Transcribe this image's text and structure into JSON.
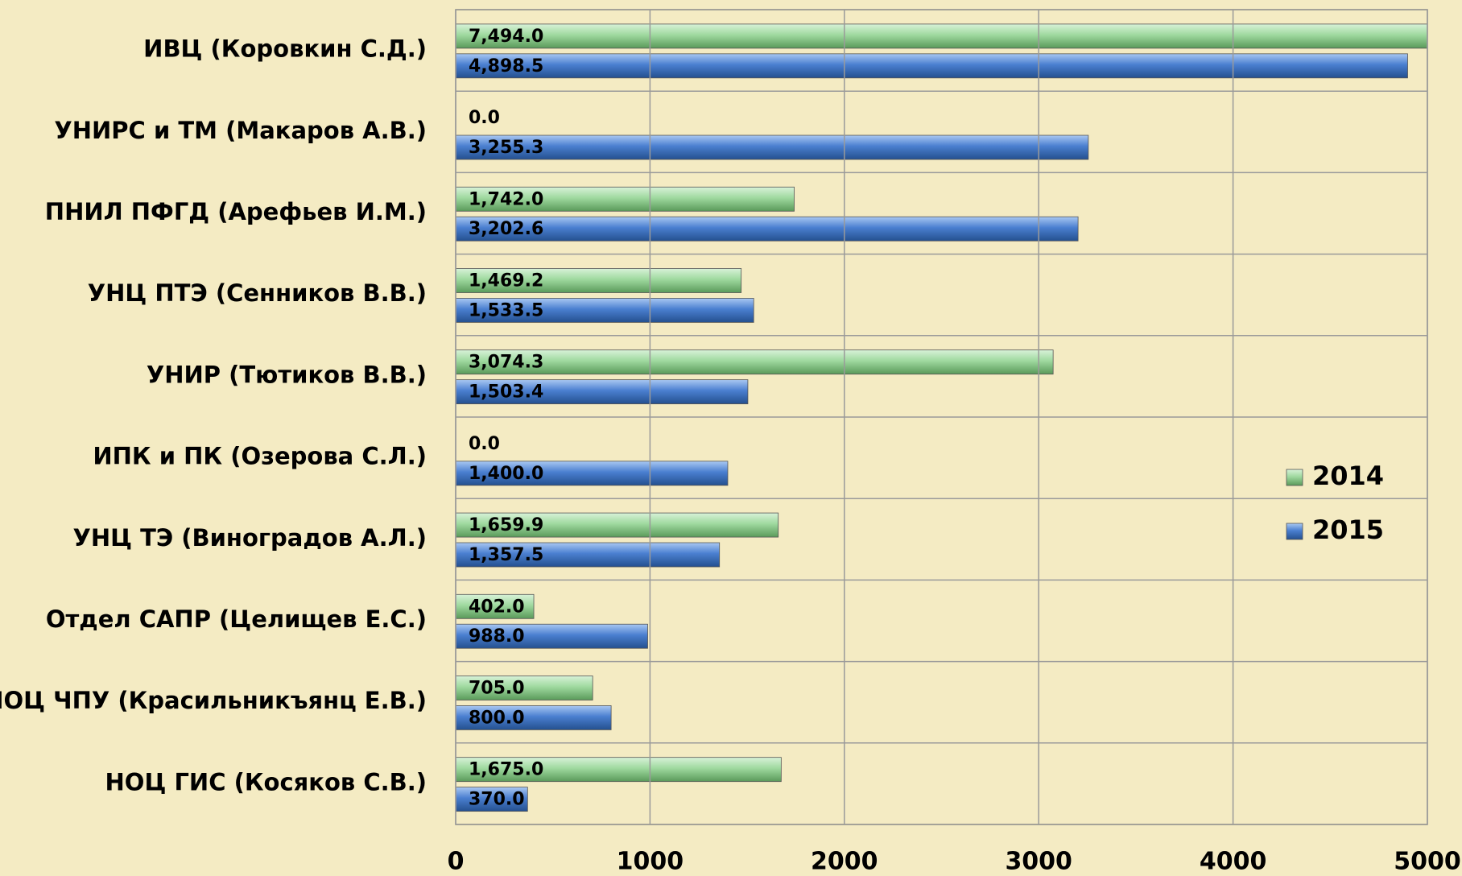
{
  "chart_data": {
    "type": "bar",
    "orientation": "horizontal",
    "categories": [
      "ИВЦ (Коровкин С.Д.)",
      "УНИРС и ТМ (Макаров А.В.)",
      "ПНИЛ ПФГД (Арефьев И.М.)",
      "УНЦ ПТЭ (Сенников В.В.)",
      "УНИР (Тютиков В.В.)",
      "ИПК и ПК (Озерова С.Л.)",
      "УНЦ ТЭ  (Виноградов А.Л.)",
      "Отдел САПР (Целищев Е.С.)",
      "НОЦ ЧПУ (Красильникъянц Е.В.)",
      "НОЦ ГИС  (Косяков С.В.)"
    ],
    "series": [
      {
        "name": "2014",
        "color": "#8fd08f",
        "values": [
          7494.0,
          0.0,
          1742.0,
          1469.2,
          3074.3,
          0.0,
          1659.9,
          402.0,
          705.0,
          1675.0
        ],
        "value_labels": [
          "7,494.0",
          "0.0",
          "1,742.0",
          "1,469.2",
          "3,074.3",
          "0.0",
          "1,659.9",
          "402.0",
          "705.0",
          "1,675.0"
        ]
      },
      {
        "name": "2015",
        "color": "#4a7fd0",
        "values": [
          4898.5,
          3255.3,
          3202.6,
          1533.5,
          1503.4,
          1400.0,
          1357.5,
          988.0,
          800.0,
          370.0
        ],
        "value_labels": [
          "4,898.5",
          "3,255.3",
          "3,202.6",
          "1,533.5",
          "1,503.4",
          "1,400.0",
          "1,357.5",
          "988.0",
          "800.0",
          "370.0"
        ]
      }
    ],
    "xlim": [
      0,
      5000
    ],
    "xticks": [
      0,
      1000,
      2000,
      3000,
      4000,
      5000
    ],
    "grid": true,
    "legend": "right"
  }
}
